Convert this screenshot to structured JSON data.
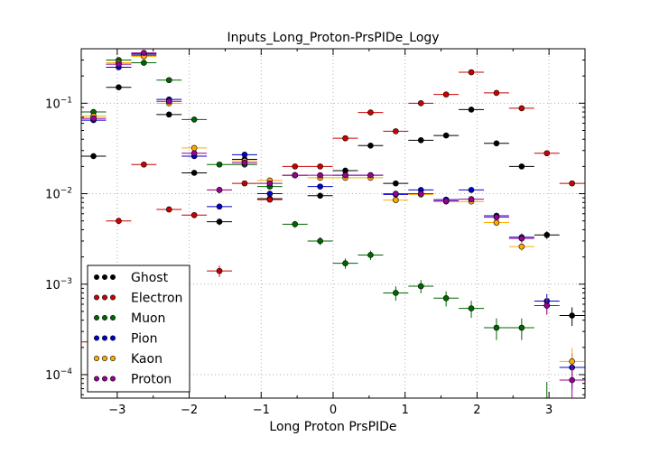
{
  "chart_data": {
    "type": "scatter",
    "title": "Inputs_Long_Proton-PrsPIDe_Logy",
    "xlabel": "Long Proton PrsPIDe",
    "ylabel": "",
    "xlim": [
      -3.5,
      3.5
    ],
    "ylim": [
      5.5e-05,
      0.4
    ],
    "yscale": "log",
    "grid": true,
    "legend_position": "lower-left",
    "x_ticks": [
      -3,
      -2,
      -1,
      0,
      1,
      2,
      3
    ],
    "x_tick_labels": [
      "−3",
      "−2",
      "−1",
      "0",
      "1",
      "2",
      "3"
    ],
    "y_ticks": [
      0.0001,
      0.001,
      0.01,
      0.1
    ],
    "y_tick_labels": [
      {
        "base": "10",
        "exp": "−4"
      },
      {
        "base": "10",
        "exp": "−3"
      },
      {
        "base": "10",
        "exp": "−2"
      },
      {
        "base": "10",
        "exp": "−1"
      }
    ],
    "bin_half_width": 0.175,
    "series": [
      {
        "name": "Ghost",
        "color": "#000000",
        "x": [
          -3.33,
          -2.98,
          -2.63,
          -2.28,
          -1.93,
          -1.58,
          -1.23,
          -0.88,
          -0.53,
          -0.18,
          0.17,
          0.52,
          0.87,
          1.22,
          1.57,
          1.92,
          2.27,
          2.62,
          2.97,
          3.32
        ],
        "y": [
          0.026,
          0.15,
          0.35,
          0.075,
          0.017,
          0.0049,
          0.024,
          0.0088,
          0.016,
          0.0095,
          0.018,
          0.034,
          0.013,
          0.039,
          0.044,
          0.085,
          0.036,
          0.02,
          0.0035,
          0.00045
        ]
      },
      {
        "name": "Electron",
        "color": "#cc0000",
        "x": [
          -3.33,
          -2.98,
          -2.63,
          -2.28,
          -1.93,
          -1.58,
          -1.23,
          -0.88,
          -0.53,
          -0.18,
          0.17,
          0.52,
          0.87,
          1.22,
          1.57,
          1.92,
          2.27,
          2.62,
          2.97,
          3.32
        ],
        "y": [
          0.00023,
          0.005,
          0.021,
          0.0067,
          0.0058,
          0.0014,
          0.013,
          0.0086,
          0.02,
          0.02,
          0.041,
          0.079,
          0.049,
          0.1,
          0.125,
          0.22,
          0.13,
          0.088,
          0.028,
          0.013
        ]
      },
      {
        "name": "Muon",
        "color": "#006600",
        "x": [
          -3.33,
          -2.98,
          -2.63,
          -2.28,
          -1.93,
          -1.58,
          -1.23,
          -0.88,
          -0.53,
          -0.18,
          0.17,
          0.52,
          0.87,
          1.22,
          1.57,
          1.92,
          2.27,
          2.62,
          2.97
        ],
        "y": [
          0.08,
          0.3,
          0.28,
          0.18,
          0.066,
          0.021,
          0.021,
          0.012,
          0.0046,
          0.003,
          0.0017,
          0.0021,
          0.0008,
          0.00095,
          0.0007,
          0.00054,
          0.00033,
          0.00033,
          5.2e-05
        ]
      },
      {
        "name": "Pion",
        "color": "#0000cc",
        "x": [
          -3.33,
          -2.98,
          -2.63,
          -2.28,
          -1.93,
          -1.58,
          -1.23,
          -0.88,
          -0.53,
          -0.18,
          0.17,
          0.52,
          0.87,
          1.22,
          1.57,
          1.92,
          2.27,
          2.62,
          2.97,
          3.32
        ],
        "y": [
          0.065,
          0.25,
          0.34,
          0.11,
          0.026,
          0.0072,
          0.027,
          0.01,
          0.016,
          0.012,
          0.016,
          0.016,
          0.0098,
          0.011,
          0.0086,
          0.011,
          0.0057,
          0.0033,
          0.00065,
          0.00012
        ]
      },
      {
        "name": "Kaon",
        "color": "#ffaa00",
        "x": [
          -3.33,
          -2.98,
          -2.63,
          -2.28,
          -1.93,
          -1.58,
          -1.23,
          -0.88,
          -0.53,
          -0.18,
          0.17,
          0.52,
          0.87,
          1.22,
          1.57,
          1.92,
          2.27,
          2.62,
          2.97,
          3.32
        ],
        "y": [
          0.072,
          0.28,
          0.33,
          0.1,
          0.032,
          0.011,
          0.023,
          0.014,
          0.016,
          0.015,
          0.015,
          0.015,
          0.0085,
          0.0098,
          0.0082,
          0.0082,
          0.0048,
          0.0026,
          0.00058,
          0.00014
        ]
      },
      {
        "name": "Proton",
        "color": "#990099",
        "x": [
          -3.33,
          -2.98,
          -2.63,
          -2.28,
          -1.93,
          -1.58,
          -1.23,
          -0.88,
          -0.53,
          -0.18,
          0.17,
          0.52,
          0.87,
          1.22,
          1.57,
          1.92,
          2.27,
          2.62,
          2.97,
          3.32
        ],
        "y": [
          0.068,
          0.27,
          0.36,
          0.105,
          0.028,
          0.011,
          0.022,
          0.013,
          0.016,
          0.016,
          0.016,
          0.016,
          0.01,
          0.01,
          0.0083,
          0.0087,
          0.0055,
          0.0032,
          0.00058,
          8.7e-05
        ]
      }
    ]
  }
}
